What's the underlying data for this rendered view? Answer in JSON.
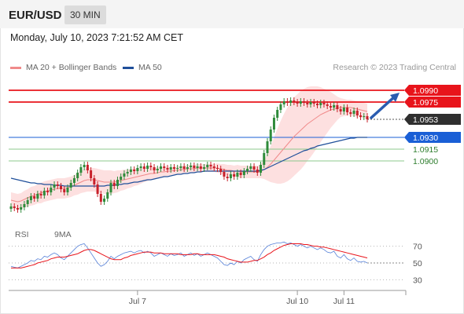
{
  "header": {
    "symbol": "EUR/USD",
    "interval": "30 MIN"
  },
  "timestamp": "Monday, July 10, 2023 7:21:52 AM CET",
  "legend": {
    "ma_bollinger": "MA 20 + Bollinger Bands",
    "ma50": "MA 50",
    "credit": "Research © 2023 Trading Central",
    "rsi": "RSI",
    "rsi_ma": "9MA"
  },
  "colors": {
    "candle_up": "#2e8b3a",
    "candle_down": "#c8202a",
    "ma20": "#f08a8a",
    "bollinger_fill": "#fde0e0",
    "ma50": "#1f4f9a",
    "resistance": "#e8141b",
    "pivot": "#1a5fd6",
    "support": "#8cc98c",
    "price_tag": "#2f2f2f",
    "rsi_line": "#5580d8",
    "rsi_ma": "#e8141b",
    "arrow": "#2a5cb0"
  },
  "chart_data": [
    {
      "type": "candlestick",
      "title": "EUR/USD 30 MIN",
      "x_tick_labels": [
        "Jul 7",
        "Jul 10",
        "Jul 11"
      ],
      "ylim": [
        1.0825,
        1.1005
      ],
      "levels": [
        {
          "label": "1.0990",
          "value": 1.099,
          "kind": "resistance"
        },
        {
          "label": "1.0975",
          "value": 1.0975,
          "kind": "resistance"
        },
        {
          "label": "1.0953",
          "value": 1.0953,
          "kind": "last_price"
        },
        {
          "label": "1.0930",
          "value": 1.093,
          "kind": "pivot"
        },
        {
          "label": "1.0915",
          "value": 1.0915,
          "kind": "support"
        },
        {
          "label": "1.0900",
          "value": 1.09,
          "kind": "support"
        }
      ],
      "bullish_arrow": {
        "from": 1.0953,
        "to": 1.099
      },
      "closes": [
        1.0842,
        1.084,
        1.0838,
        1.0841,
        1.0845,
        1.085,
        1.0855,
        1.0852,
        1.0858,
        1.0856,
        1.0862,
        1.086,
        1.0866,
        1.087,
        1.0868,
        1.0864,
        1.086,
        1.0866,
        1.0872,
        1.0878,
        1.0885,
        1.0892,
        1.0895,
        1.0888,
        1.0878,
        1.087,
        1.0858,
        1.0848,
        1.0852,
        1.086,
        1.0872,
        1.0868,
        1.0876,
        1.088,
        1.0884,
        1.0886,
        1.0889,
        1.0887,
        1.0891,
        1.0893,
        1.089,
        1.0894,
        1.0892,
        1.0888,
        1.089,
        1.0893,
        1.0891,
        1.0889,
        1.0892,
        1.089,
        1.0891,
        1.0893,
        1.089,
        1.0892,
        1.0894,
        1.0891,
        1.0893,
        1.089,
        1.0892,
        1.0895,
        1.0893,
        1.0891,
        1.089,
        1.0886,
        1.088,
        1.0878,
        1.0883,
        1.088,
        1.0885,
        1.0882,
        1.0887,
        1.089,
        1.0893,
        1.0889,
        1.0885,
        1.0895,
        1.091,
        1.0925,
        1.094,
        1.0955,
        1.0965,
        1.0972,
        1.0976,
        1.0974,
        1.0977,
        1.0975,
        1.0973,
        1.0976,
        1.0974,
        1.0972,
        1.0975,
        1.0973,
        1.0971,
        1.0974,
        1.0972,
        1.097,
        1.0968,
        1.0971,
        1.0966,
        1.0963,
        1.0968,
        1.0962,
        1.096,
        1.0964,
        1.0958,
        1.0956,
        1.0957,
        1.0953
      ],
      "ma20": [
        1.085,
        1.0849,
        1.0848,
        1.0849,
        1.0851,
        1.0853,
        1.0855,
        1.0856,
        1.0858,
        1.0859,
        1.0861,
        1.0862,
        1.0863,
        1.0864,
        1.0865,
        1.0865,
        1.0865,
        1.0866,
        1.0867,
        1.0869,
        1.0871,
        1.0873,
        1.0875,
        1.0876,
        1.0876,
        1.0876,
        1.0875,
        1.0874,
        1.0873,
        1.0873,
        1.0873,
        1.0873,
        1.0874,
        1.0875,
        1.0876,
        1.0877,
        1.0878,
        1.0879,
        1.088,
        1.0881,
        1.0882,
        1.0883,
        1.0884,
        1.0884,
        1.0885,
        1.0886,
        1.0886,
        1.0887,
        1.0887,
        1.0888,
        1.0888,
        1.0889,
        1.0889,
        1.089,
        1.089,
        1.089,
        1.0891,
        1.0891,
        1.0891,
        1.0891,
        1.0891,
        1.0891,
        1.0891,
        1.089,
        1.0889,
        1.0888,
        1.0888,
        1.0887,
        1.0887,
        1.0886,
        1.0886,
        1.0886,
        1.0886,
        1.0886,
        1.0886,
        1.0887,
        1.0889,
        1.0892,
        1.0896,
        1.0901,
        1.0906,
        1.0911,
        1.0916,
        1.0921,
        1.0926,
        1.0931,
        1.0935,
        1.0939,
        1.0943,
        1.0947,
        1.095,
        1.0953,
        1.0956,
        1.0959,
        1.0961,
        1.0963,
        1.0965,
        1.0966,
        1.0967,
        1.0968,
        1.0968,
        1.0968,
        1.0968,
        1.0967,
        1.0966,
        1.0965,
        1.0964,
        1.0963
      ],
      "band_width": [
        0.001,
        0.001,
        0.001,
        0.001,
        0.0011,
        0.0011,
        0.0012,
        0.0012,
        0.0012,
        0.0013,
        0.0013,
        0.0013,
        0.0013,
        0.0013,
        0.0013,
        0.0013,
        0.0013,
        0.0013,
        0.0013,
        0.0013,
        0.0014,
        0.0014,
        0.0015,
        0.0015,
        0.0015,
        0.0015,
        0.0015,
        0.0015,
        0.0015,
        0.0015,
        0.0015,
        0.0014,
        0.0014,
        0.0013,
        0.0013,
        0.0012,
        0.0012,
        0.0011,
        0.0011,
        0.001,
        0.0009,
        0.0009,
        0.0008,
        0.0007,
        0.0007,
        0.0006,
        0.0006,
        0.0006,
        0.0005,
        0.0005,
        0.0005,
        0.0005,
        0.0005,
        0.0005,
        0.0005,
        0.0005,
        0.0005,
        0.0005,
        0.0005,
        0.0005,
        0.0005,
        0.0005,
        0.0006,
        0.0006,
        0.0007,
        0.0007,
        0.0007,
        0.0007,
        0.0008,
        0.0008,
        0.0008,
        0.0008,
        0.0008,
        0.0008,
        0.0008,
        0.0009,
        0.0012,
        0.0017,
        0.0023,
        0.0029,
        0.0035,
        0.004,
        0.0044,
        0.0047,
        0.0049,
        0.005,
        0.005,
        0.005,
        0.0049,
        0.0047,
        0.0045,
        0.0042,
        0.0039,
        0.0035,
        0.0031,
        0.0027,
        0.0023,
        0.0019,
        0.0015,
        0.0012,
        0.0011,
        0.001,
        0.001,
        0.001,
        0.001,
        0.001,
        0.001,
        0.001
      ],
      "ma50": [
        1.0878,
        1.0877,
        1.0876,
        1.0875,
        1.0874,
        1.0873,
        1.0872,
        1.0872,
        1.0871,
        1.0871,
        1.087,
        1.087,
        1.087,
        1.0869,
        1.0869,
        1.0869,
        1.0868,
        1.0868,
        1.0868,
        1.0868,
        1.0868,
        1.0868,
        1.0868,
        1.0868,
        1.0868,
        1.0868,
        1.0868,
        1.0868,
        1.0868,
        1.0869,
        1.0869,
        1.0869,
        1.087,
        1.087,
        1.0871,
        1.0871,
        1.0872,
        1.0873,
        1.0873,
        1.0874,
        1.0875,
        1.0876,
        1.0876,
        1.0877,
        1.0878,
        1.0879,
        1.088,
        1.088,
        1.0881,
        1.0882,
        1.0883,
        1.0883,
        1.0884,
        1.0884,
        1.0885,
        1.0885,
        1.0886,
        1.0886,
        1.0887,
        1.0887,
        1.0887,
        1.0887,
        1.0887,
        1.0887,
        1.0887,
        1.0887,
        1.0887,
        1.0887,
        1.0887,
        1.0887,
        1.0887,
        1.0887,
        1.0887,
        1.0887,
        1.0887,
        1.0888,
        1.0889,
        1.0891,
        1.0893,
        1.0895,
        1.0897,
        1.0899,
        1.0901,
        1.0903,
        1.0905,
        1.0907,
        1.0909,
        1.0911,
        1.0913,
        1.0914,
        1.0916,
        1.0917,
        1.0919,
        1.092,
        1.0921,
        1.0922,
        1.0923,
        1.0924,
        1.0925,
        1.0926,
        1.0927,
        1.0928,
        1.0929,
        1.0929,
        1.093,
        1.093,
        1.093,
        1.093
      ]
    },
    {
      "type": "line",
      "title": "RSI",
      "y_tick_labels": [
        "70",
        "50",
        "30"
      ],
      "ylim": [
        20,
        80
      ],
      "series": [
        {
          "name": "RSI",
          "values": [
            46,
            45,
            44,
            46,
            48,
            50,
            53,
            52,
            55,
            54,
            58,
            57,
            60,
            62,
            60,
            56,
            54,
            58,
            62,
            66,
            70,
            72,
            73,
            68,
            62,
            56,
            50,
            46,
            48,
            52,
            58,
            55,
            58,
            60,
            62,
            63,
            64,
            62,
            64,
            65,
            62,
            64,
            62,
            58,
            60,
            62,
            60,
            58,
            61,
            59,
            60,
            62,
            58,
            60,
            62,
            59,
            61,
            58,
            60,
            62,
            60,
            58,
            56,
            52,
            48,
            47,
            50,
            48,
            52,
            50,
            54,
            56,
            58,
            54,
            52,
            60,
            66,
            70,
            72,
            73,
            74,
            74,
            75,
            73,
            74,
            72,
            70,
            72,
            70,
            68,
            70,
            68,
            66,
            68,
            66,
            63,
            62,
            64,
            58,
            56,
            60,
            55,
            53,
            56,
            52,
            51,
            52,
            50
          ]
        },
        {
          "name": "9MA",
          "values": [
            44,
            44,
            44,
            44,
            45,
            46,
            47,
            48,
            50,
            51,
            52,
            53,
            55,
            56,
            57,
            57,
            57,
            58,
            59,
            60,
            61,
            63,
            65,
            66,
            66,
            65,
            63,
            61,
            59,
            57,
            55,
            54,
            54,
            54,
            56,
            57,
            59,
            60,
            61,
            62,
            63,
            63,
            63,
            62,
            62,
            62,
            61,
            61,
            61,
            61,
            61,
            60,
            60,
            60,
            60,
            61,
            61,
            60,
            60,
            60,
            60,
            60,
            59,
            58,
            57,
            55,
            54,
            53,
            52,
            51,
            51,
            51,
            52,
            53,
            53,
            55,
            57,
            60,
            62,
            65,
            67,
            69,
            71,
            72,
            73,
            73,
            73,
            73,
            72,
            72,
            71,
            70,
            70,
            69,
            69,
            68,
            67,
            66,
            65,
            64,
            63,
            62,
            61,
            60,
            59,
            58,
            57,
            56
          ]
        }
      ]
    }
  ]
}
